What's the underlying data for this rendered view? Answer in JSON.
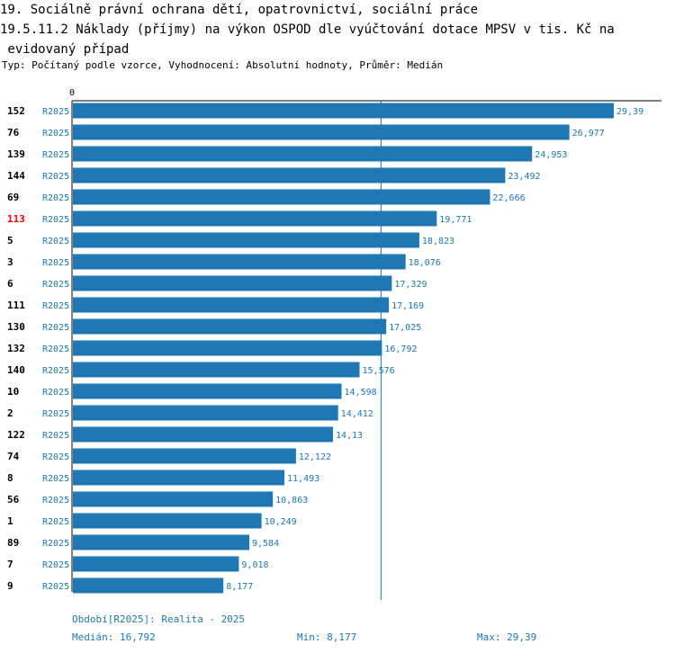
{
  "header": {
    "line1": "19. Sociálně právní ochrana dětí, opatrovnictví, sociální práce",
    "line2": "19.5.11.2 Náklady (příjmy) na výkon OSPOD dle vyúčtování dotace MPSV v tis. Kč na",
    "line3": " evidovaný případ",
    "subtitle": "Typ: Počítaný podle vzorce, Vyhodnocení: Absolutní hodnoty, Průměr: Medián"
  },
  "colors": {
    "bar": "#1f77b4",
    "label": "#1f77b4",
    "highlight": "#ff0000",
    "text": "#000000"
  },
  "chart_data": {
    "type": "bar",
    "orientation": "horizontal",
    "axis_zero_label": "0",
    "xlim": [
      0,
      29.39
    ],
    "series_label": "R2025",
    "highlight_category": "113",
    "categories": [
      "152",
      "76",
      "139",
      "144",
      "69",
      "113",
      "5",
      "3",
      "6",
      "111",
      "130",
      "132",
      "140",
      "10",
      "2",
      "122",
      "74",
      "8",
      "56",
      "1",
      "89",
      "7",
      "9"
    ],
    "values": [
      29.39,
      26.977,
      24.953,
      23.492,
      22.666,
      19.771,
      18.823,
      18.076,
      17.329,
      17.169,
      17.025,
      16.792,
      15.576,
      14.598,
      14.412,
      14.13,
      12.122,
      11.493,
      10.863,
      10.249,
      9.584,
      9.018,
      8.177
    ],
    "value_labels": [
      "29,39",
      "26,977",
      "24,953",
      "23,492",
      "22,666",
      "19,771",
      "18,823",
      "18,076",
      "17,329",
      "17,169",
      "17,025",
      "16,792",
      "15,576",
      "14,598",
      "14,412",
      "14,13",
      "12,122",
      "11,493",
      "10,863",
      "10,249",
      "9,584",
      "9,018",
      "8,177"
    ],
    "median_line": 16.792
  },
  "footer": {
    "period": "Období[R2025]: Realita - 2025",
    "median": "Medián: 16,792",
    "min": "Min: 8,177",
    "max": "Max: 29,39"
  }
}
